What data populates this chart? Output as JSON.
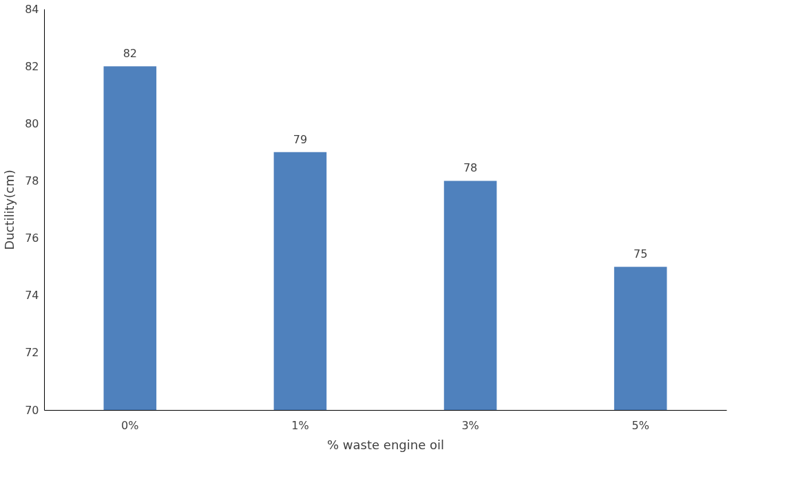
{
  "chart_data": {
    "type": "bar",
    "xlabel": "% waste engine oil",
    "ylabel": "Ductility(cm)",
    "categories": [
      "0%",
      "1%",
      "3%",
      "5%"
    ],
    "values": [
      82,
      79,
      78,
      75
    ],
    "color": "#4f81bd",
    "ylim": [
      70,
      84
    ],
    "yticks": [
      70,
      72,
      74,
      76,
      78,
      80,
      82,
      84
    ],
    "data_labels": true,
    "grid": false
  }
}
